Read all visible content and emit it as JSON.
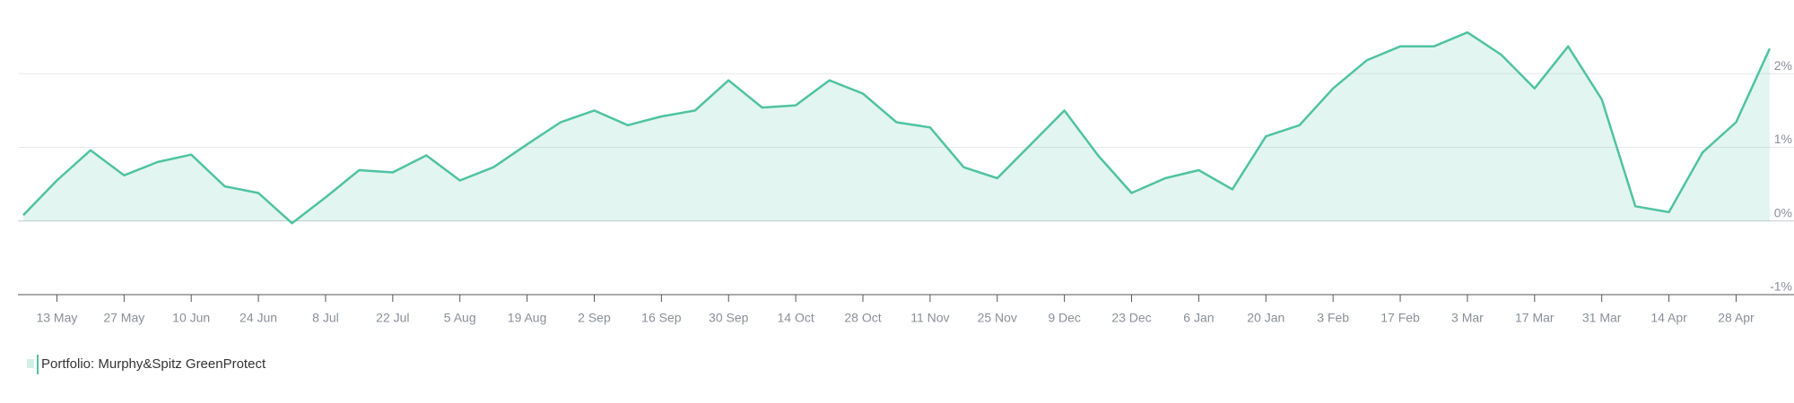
{
  "chart_data": {
    "type": "area",
    "categories": [
      null,
      "13 May",
      null,
      "27 May",
      null,
      "10 Jun",
      null,
      "24 Jun",
      null,
      "8 Jul",
      null,
      "22 Jul",
      null,
      "5 Aug",
      null,
      "19 Aug",
      null,
      "2 Sep",
      null,
      "16 Sep",
      null,
      "30 Sep",
      null,
      "14 Oct",
      null,
      "28 Oct",
      null,
      "11 Nov",
      null,
      "25 Nov",
      null,
      "9 Dec",
      null,
      "23 Dec",
      null,
      "6 Jan",
      null,
      "20 Jan",
      null,
      "3 Feb",
      null,
      "17 Feb",
      null,
      "3 Mar",
      null,
      "17 Mar",
      null,
      "31 Mar",
      null,
      "14 Apr",
      null,
      "28 Apr",
      null
    ],
    "series": [
      {
        "name": "Portfolio: Murphy&Spitz GreenProtect",
        "color": "#4fc3a1",
        "values": [
          0.08,
          0.55,
          0.96,
          0.62,
          0.8,
          0.9,
          0.47,
          0.38,
          -0.03,
          0.32,
          0.69,
          0.66,
          0.89,
          0.55,
          0.73,
          1.04,
          1.34,
          1.5,
          1.3,
          1.42,
          1.5,
          1.91,
          1.54,
          1.57,
          1.91,
          1.73,
          1.34,
          1.27,
          0.73,
          0.58,
          1.04,
          1.5,
          0.89,
          0.38,
          0.58,
          0.69,
          0.43,
          1.15,
          1.3,
          1.8,
          2.18,
          2.37,
          2.37,
          2.56,
          2.26,
          1.8,
          2.37,
          1.65,
          0.2,
          0.12,
          0.93,
          1.34,
          2.34
        ]
      }
    ],
    "ylim": [
      -1,
      3
    ],
    "yticks": [
      {
        "value": -1,
        "label": "-1%"
      },
      {
        "value": 0,
        "label": "0%"
      },
      {
        "value": 1,
        "label": "1%"
      },
      {
        "value": 2,
        "label": "2%"
      }
    ],
    "grid": true
  }
}
